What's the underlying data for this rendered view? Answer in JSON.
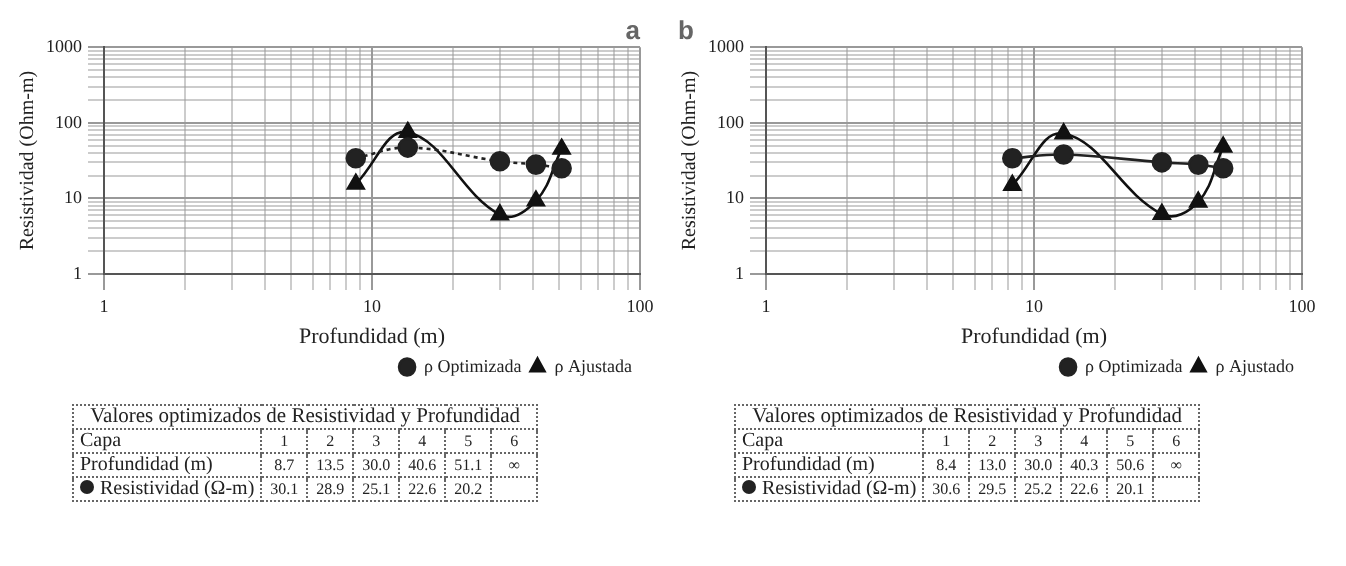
{
  "chart_data": [
    {
      "type": "line",
      "title": "a",
      "xlabel": "Profundidad (m)",
      "ylabel": "Resistividad (Ohm-m)",
      "log": "xy",
      "grid": true,
      "legend": "bottom right",
      "xlim": [
        1,
        100
      ],
      "xticks": [
        1,
        10,
        100
      ],
      "ylim": [
        1,
        1000
      ],
      "yticks": [
        1,
        10,
        100,
        1000
      ],
      "series": [
        {
          "name": "ρ Optimizada",
          "color": "#222222",
          "marker": "circle",
          "line_style": "dotted",
          "x": [
            8.7,
            13.6,
            30,
            40.9,
            51
          ],
          "values": [
            34,
            47,
            31,
            28,
            25
          ]
        },
        {
          "name": "ρ Ajustada",
          "color": "#111111",
          "marker": "triangle",
          "line_style": "solid",
          "x": [
            8.7,
            13.6,
            30,
            40.9,
            51
          ],
          "values": [
            15.5,
            75,
            6.1,
            9.3,
            45
          ]
        }
      ],
      "annotations": [
        "Valores optimizados de Resistividad y Profundidad",
        "Capa\t1\t2\t3\t4\t5\t6",
        "Profundidad (m)\t8.7\t13.5\t30.0\t40.6\t51.1\t∞",
        "Resistividad (Ω-m)\t30.1\t28.9\t25.1\t22.6\t20.2\t"
      ]
    },
    {
      "type": "line",
      "title": "b",
      "xlabel": "Profundidad (m)",
      "ylabel": "Resistividad (Ohm-m)",
      "log": "xy",
      "grid": true,
      "legend": "bottom right",
      "xlim": [
        1,
        100
      ],
      "xticks": [
        1,
        10,
        100
      ],
      "ylim": [
        1,
        1000
      ],
      "yticks": [
        1,
        10,
        100,
        1000
      ],
      "series": [
        {
          "name": "ρ Optimizada",
          "color": "#222222",
          "marker": "circle",
          "line_style": "solid",
          "x": [
            8.3,
            12.9,
            30,
            41,
            50.8
          ],
          "values": [
            34,
            38,
            30,
            28,
            25
          ]
        },
        {
          "name": "ρ Ajustado",
          "color": "#111111",
          "marker": "triangle",
          "line_style": "solid",
          "x": [
            8.3,
            12.9,
            30,
            41,
            50.8
          ],
          "values": [
            15,
            72,
            6.2,
            9,
            48
          ]
        }
      ],
      "annotations": [
        "Valores optimizados de Resistividad y Profundidad",
        "Capa\t1\t2\t3\t4\t5\t6",
        "Profundidad (m)\t8.4\t13.0\t30.0\t40.3\t50.6\t∞",
        "Resistividad (Ω-m)\t30.6\t29.5\t25.2\t22.6\t20.1\t"
      ]
    }
  ]
}
